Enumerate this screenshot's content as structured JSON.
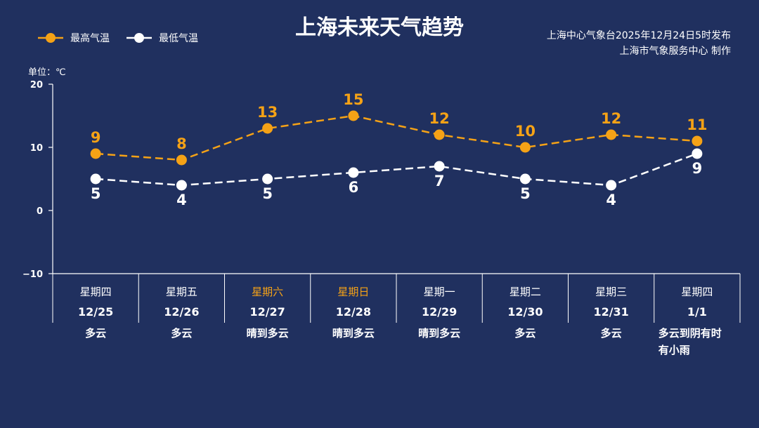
{
  "title": "上海未来天气趋势",
  "source": {
    "line1": "上海中心气象台2025年12月24日5时发布",
    "line2": "上海市气象服务中心  制作"
  },
  "unit_label": "单位：℃",
  "colors": {
    "background": "#20305f",
    "high": "#f5a216",
    "low": "#ffffff",
    "weekend": "#f5a216"
  },
  "chart_data": {
    "type": "line",
    "title": "上海未来天气趋势",
    "ylabel": "单位：℃",
    "ylim": [
      -10,
      20
    ],
    "yticks": [
      20,
      10,
      0,
      -10
    ],
    "grid": false,
    "legend_position": "top-left",
    "categories": [
      "12/25",
      "12/26",
      "12/27",
      "12/28",
      "12/29",
      "12/30",
      "12/31",
      "1/1"
    ],
    "weekdays": [
      "星期四",
      "星期五",
      "星期六",
      "星期日",
      "星期一",
      "星期二",
      "星期三",
      "星期四"
    ],
    "weekend": [
      false,
      false,
      true,
      true,
      false,
      false,
      false,
      false
    ],
    "weather": [
      [
        "多云"
      ],
      [
        "多云"
      ],
      [
        "晴到多云"
      ],
      [
        "晴到多云"
      ],
      [
        "晴到多云"
      ],
      [
        "多云"
      ],
      [
        "多云"
      ],
      [
        "多云到阴有时",
        "有小雨"
      ]
    ],
    "series": [
      {
        "name": "最高气温",
        "values": [
          9,
          8,
          13,
          15,
          12,
          10,
          12,
          11
        ]
      },
      {
        "name": "最低气温",
        "values": [
          5,
          4,
          5,
          6,
          7,
          5,
          4,
          9
        ]
      }
    ]
  }
}
